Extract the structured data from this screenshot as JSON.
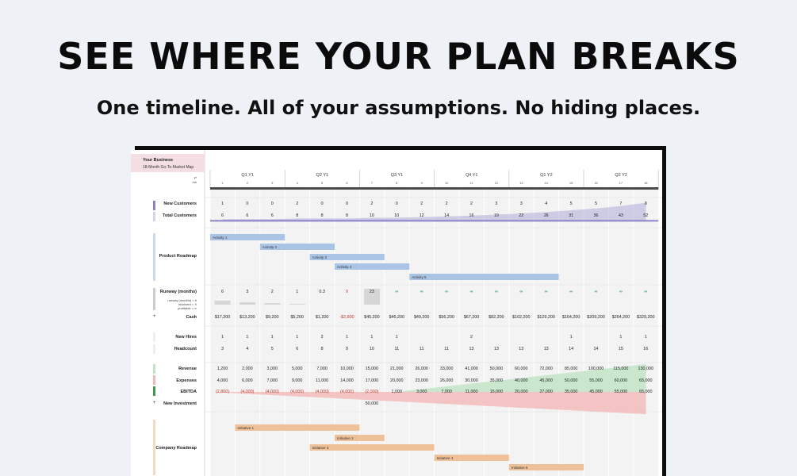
{
  "header": {
    "title": "SEE WHERE YOUR PLAN BREAKS",
    "subtitle": "One timeline. All of your assumptions. No hiding places."
  },
  "sheet": {
    "business_name": "Your Business",
    "business_subtitle": "18-Month Go-To-Market Map",
    "year_label": "yr",
    "month_label": "mo",
    "quarters": [
      "Q1 Y1",
      "Q2 Y1",
      "Q3 Y1",
      "Q4 Y1",
      "Q1 Y2",
      "Q2 Y2"
    ],
    "months": [
      "1",
      "2",
      "3",
      "4",
      "5",
      "6",
      "7",
      "8",
      "9",
      "10",
      "11",
      "12",
      "13",
      "14",
      "15",
      "16",
      "17",
      "18"
    ],
    "rows": {
      "new_customers": {
        "label": "New Customers",
        "values": [
          "1",
          "0",
          "0",
          "2",
          "0",
          "0",
          "2",
          "0",
          "2",
          "2",
          "2",
          "3",
          "3",
          "4",
          "5",
          "5",
          "7",
          "9"
        ]
      },
      "total_customers": {
        "label": "Total Customers",
        "values": [
          "6",
          "6",
          "6",
          "8",
          "8",
          "8",
          "10",
          "10",
          "12",
          "14",
          "16",
          "19",
          "22",
          "26",
          "31",
          "36",
          "43",
          "52"
        ]
      },
      "product_roadmap": {
        "label": "Product Roadmap",
        "activities": [
          "Activity 1",
          "Activity 2",
          "Activity 3",
          "Activity 4",
          "Activity 5"
        ]
      },
      "runway": {
        "label": "Runway (months)",
        "legend": [
          "runway (months) = #",
          "insolvent = X",
          "profitable = ∞"
        ],
        "values": [
          "6",
          "3",
          "2",
          "1",
          "0.3",
          "X",
          "23",
          "∞",
          "∞",
          "∞",
          "∞",
          "∞",
          "∞",
          "∞",
          "∞",
          "∞",
          "∞",
          "∞"
        ]
      },
      "cash": {
        "label": "Cash",
        "values": [
          "$17,200",
          "$13,200",
          "$9,200",
          "$5,200",
          "$1,200",
          "-$2,800",
          "$45,200",
          "$46,200",
          "$49,200",
          "$56,200",
          "$67,200",
          "$82,200",
          "$102,200",
          "$129,200",
          "$164,200",
          "$209,200",
          "$264,200",
          "$329,200"
        ]
      },
      "new_hires": {
        "label": "New Hires",
        "values": [
          "1",
          "1",
          "1",
          "1",
          "2",
          "1",
          "1",
          "1",
          "",
          "",
          "2",
          "",
          "",
          "",
          "1",
          "",
          "1",
          "1"
        ]
      },
      "headcount": {
        "label": "Headcount",
        "values": [
          "3",
          "4",
          "5",
          "6",
          "8",
          "9",
          "10",
          "11",
          "11",
          "11",
          "13",
          "13",
          "13",
          "13",
          "14",
          "14",
          "15",
          "16"
        ]
      },
      "revenue": {
        "label": "Revenue",
        "values": [
          "1,200",
          "2,000",
          "3,000",
          "5,000",
          "7,000",
          "10,000",
          "15,000",
          "21,000",
          "26,000",
          "33,000",
          "41,000",
          "50,000",
          "60,000",
          "72,000",
          "85,000",
          "100,000",
          "115,000",
          "130,000"
        ]
      },
      "expenses": {
        "label": "Expenses",
        "values": [
          "4,000",
          "6,000",
          "7,000",
          "9,000",
          "11,000",
          "14,000",
          "17,000",
          "20,000",
          "23,000",
          "26,000",
          "30,000",
          "35,000",
          "40,000",
          "45,000",
          "50,000",
          "55,000",
          "60,000",
          "65,000"
        ]
      },
      "ebitda": {
        "label": "EBITDA",
        "values": [
          "(2,800)",
          "(4,000)",
          "(4,000)",
          "(4,000)",
          "(4,000)",
          "(4,000)",
          "(2,000)",
          "1,000",
          "3,000",
          "7,000",
          "11,000",
          "15,000",
          "20,000",
          "27,000",
          "35,000",
          "45,000",
          "55,000",
          "65,000"
        ]
      },
      "new_investment": {
        "label": "New Investment",
        "values": [
          "",
          "",
          "",
          "",
          "",
          "",
          "50,000",
          "",
          "",
          "",
          "",
          "",
          "",
          "",
          "",
          "",
          "",
          ""
        ]
      },
      "company_roadmap": {
        "label": "Company Roadmap",
        "initiatives": [
          "Initiative 1",
          "Initiative 2",
          "Initiative 3",
          "Initiative 4",
          "Initiative 5"
        ]
      }
    },
    "plus": "+",
    "colors": {
      "customers": "#8a82c9",
      "product": "#aac4e6",
      "revenue": "#bfe3c4",
      "expenses": "#f4b6b6",
      "ebitda": "#3a9b46",
      "company": "#efc198",
      "negative": "#c0392b"
    }
  }
}
